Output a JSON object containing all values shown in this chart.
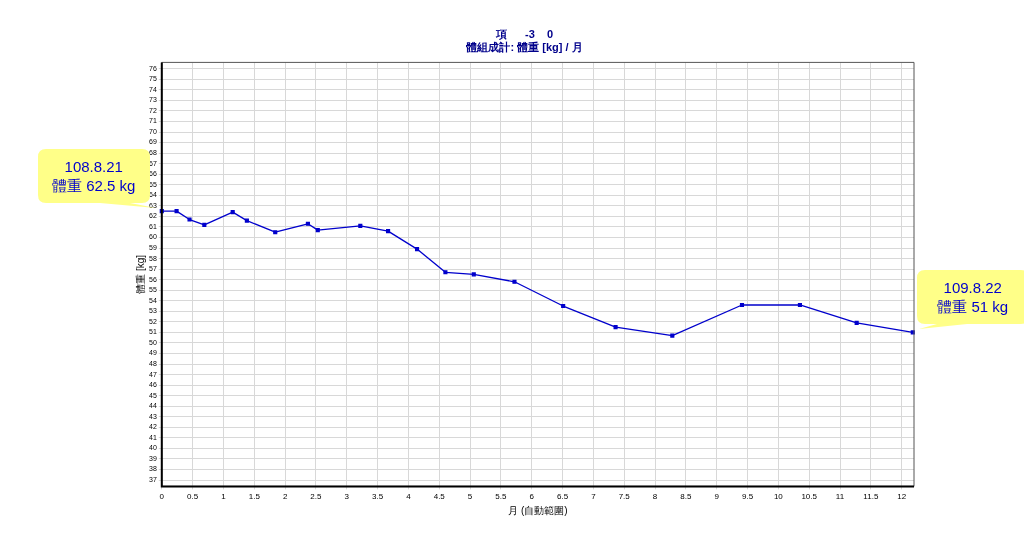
{
  "chart_data": {
    "type": "line",
    "title": "項      -3    0",
    "subtitle": "體組成計: 體重 [kg] / 月",
    "xlabel": "月 (自動範圍)",
    "ylabel": "體重 [kg]",
    "series": [
      {
        "color": "#0000cc",
        "x": [
          0,
          0.24,
          0.45,
          0.69,
          1.15,
          1.38,
          1.84,
          2.37,
          2.53,
          3.22,
          3.67,
          4.14,
          4.6,
          5.06,
          5.72,
          6.51,
          7.36,
          8.28,
          9.41,
          10.35,
          11.27,
          12.18
        ],
        "values": [
          62.5,
          62.5,
          61.7,
          61.2,
          62.4,
          61.6,
          60.5,
          61.3,
          60.7,
          61.1,
          60.6,
          58.9,
          56.7,
          56.5,
          55.8,
          53.5,
          51.5,
          50.7,
          53.6,
          53.6,
          51.9,
          51
        ]
      }
    ],
    "xlim": [
      0,
      12.2
    ],
    "xticks": [
      0,
      0.5,
      1,
      1.5,
      2,
      2.5,
      3,
      3.5,
      4,
      4.5,
      5,
      5.5,
      6,
      6.5,
      7,
      7.5,
      8,
      8.5,
      9,
      9.5,
      10,
      10.5,
      11,
      11.5,
      12
    ],
    "ylim": [
      36.4,
      76.6
    ],
    "yticks": [
      37,
      38,
      39,
      40,
      41,
      42,
      43,
      44,
      45,
      46,
      47,
      48,
      49,
      50,
      51,
      52,
      53,
      54,
      55,
      56,
      57,
      58,
      59,
      60,
      61,
      62,
      63,
      64,
      65,
      66,
      67,
      68,
      69,
      70,
      71,
      72,
      73,
      74,
      75,
      76
    ],
    "annotations": [
      {
        "text": "108.8.21\n體重 62.5 kg",
        "x": 0,
        "y": 62.5
      },
      {
        "text": "109.8.22\n體重 51 kg",
        "x": 12.18,
        "y": 51
      }
    ],
    "grid": true,
    "legend": false,
    "marker": "square",
    "line_style": "solid"
  }
}
